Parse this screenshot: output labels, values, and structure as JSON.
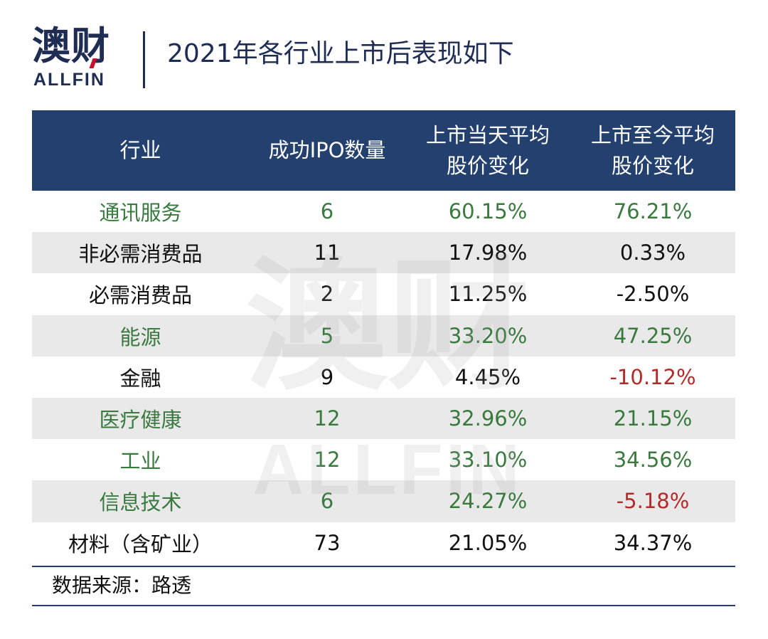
{
  "logo": {
    "cn": "澳财",
    "en": "ALLFIN"
  },
  "title": "2021年各行业上市后表现如下",
  "table": {
    "headers": [
      "行业",
      "成功IPO数量",
      "上市当天平均\n股价变化",
      "上市至今平均\n股价变化"
    ],
    "rows": [
      {
        "industry": "通讯服务",
        "ipo_count": "6",
        "day1_change": "60.15%",
        "to_date_change": "76.21%"
      },
      {
        "industry": "非必需消费品",
        "ipo_count": "11",
        "day1_change": "17.98%",
        "to_date_change": "0.33%"
      },
      {
        "industry": "必需消费品",
        "ipo_count": "2",
        "day1_change": "11.25%",
        "to_date_change": "-2.50%"
      },
      {
        "industry": "能源",
        "ipo_count": "5",
        "day1_change": "33.20%",
        "to_date_change": "47.25%"
      },
      {
        "industry": "金融",
        "ipo_count": "9",
        "day1_change": "4.45%",
        "to_date_change": "-10.12%"
      },
      {
        "industry": "医疗健康",
        "ipo_count": "12",
        "day1_change": "32.96%",
        "to_date_change": "21.15%"
      },
      {
        "industry": "工业",
        "ipo_count": "12",
        "day1_change": "33.10%",
        "to_date_change": "34.56%"
      },
      {
        "industry": "信息技术",
        "ipo_count": "6",
        "day1_change": "24.27%",
        "to_date_change": "-5.18%"
      },
      {
        "industry": "材料（含矿业）",
        "ipo_count": "73",
        "day1_change": "21.05%",
        "to_date_change": "34.37%"
      }
    ]
  },
  "source": "数据来源：路透",
  "watermark": {
    "cn": "澳财",
    "en": "ALLFIN"
  },
  "colors": {
    "header_bg": "#24406e",
    "brand_navy": "#1f2d55",
    "positive_green": "#3a7a3f",
    "negative_red": "#b32a2a",
    "row_shade": "#e9e9e9"
  }
}
